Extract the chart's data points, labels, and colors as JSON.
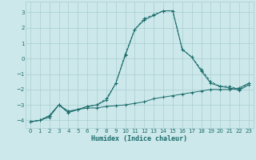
{
  "xlabel": "Humidex (Indice chaleur)",
  "ylabel": "",
  "bg_color": "#cce8ea",
  "grid_color": "#aacdd1",
  "line_color": "#1a6b6b",
  "xlim": [
    -0.5,
    23.5
  ],
  "ylim": [
    -4.5,
    3.7
  ],
  "yticks": [
    -4,
    -3,
    -2,
    -1,
    0,
    1,
    2,
    3
  ],
  "xticks": [
    0,
    1,
    2,
    3,
    4,
    5,
    6,
    7,
    8,
    9,
    10,
    11,
    12,
    13,
    14,
    15,
    16,
    17,
    18,
    19,
    20,
    21,
    22,
    23
  ],
  "series1_x": [
    0,
    1,
    2,
    3,
    4,
    5,
    6,
    7,
    8,
    9,
    10,
    11,
    12,
    13,
    14,
    15,
    16,
    17,
    18,
    19,
    20,
    21,
    22,
    23
  ],
  "series1_y": [
    -4.1,
    -4.0,
    -3.8,
    -3.0,
    -3.4,
    -3.3,
    -3.2,
    -3.2,
    -3.1,
    -3.05,
    -3.0,
    -2.9,
    -2.8,
    -2.6,
    -2.5,
    -2.4,
    -2.3,
    -2.2,
    -2.1,
    -2.0,
    -2.0,
    -2.0,
    -1.9,
    -1.6
  ],
  "series2_x": [
    0,
    1,
    2,
    3,
    4,
    5,
    6,
    7,
    8,
    9,
    10,
    11,
    12,
    13,
    14,
    15,
    16,
    17,
    18,
    19,
    20,
    21,
    22,
    23
  ],
  "series2_y": [
    -4.1,
    -4.0,
    -3.7,
    -3.0,
    -3.5,
    -3.3,
    -3.1,
    -3.0,
    -2.6,
    -1.6,
    0.3,
    1.9,
    2.6,
    2.85,
    3.1,
    3.1,
    0.6,
    0.1,
    -0.7,
    -1.5,
    -1.8,
    -1.8,
    -2.0,
    -1.6
  ],
  "series3_x": [
    0,
    1,
    2,
    3,
    4,
    5,
    6,
    7,
    8,
    9,
    10,
    11,
    12,
    13,
    14,
    15,
    16,
    17,
    18,
    19,
    20,
    21,
    22,
    23
  ],
  "series3_y": [
    -4.1,
    -4.0,
    -3.7,
    -3.0,
    -3.5,
    -3.3,
    -3.1,
    -3.0,
    -2.7,
    -1.6,
    0.2,
    1.9,
    2.5,
    2.8,
    3.1,
    3.1,
    0.6,
    0.1,
    -0.8,
    -1.6,
    -1.8,
    -1.9,
    -2.05,
    -1.7
  ]
}
